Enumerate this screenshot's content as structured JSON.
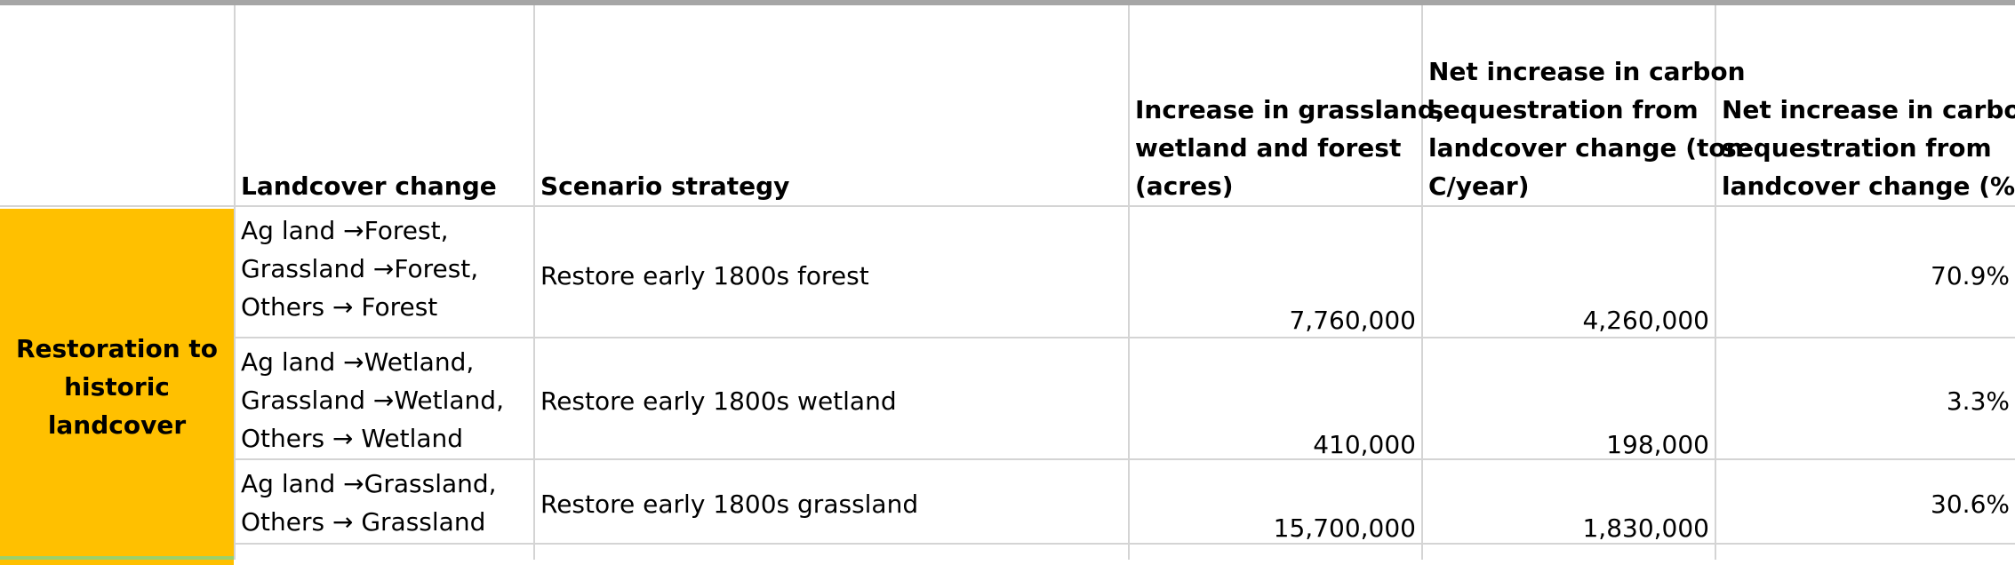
{
  "header": {
    "landcover_change": "Landcover change",
    "scenario_strategy": "Scenario strategy",
    "increase_acres": [
      "Increase in grassland,",
      "wetland and forest",
      "(acres)"
    ],
    "net_increase_tonc": [
      "Net increase in carbon",
      "sequestration from",
      "landcover change (ton-",
      "C/year)"
    ],
    "net_increase_pct": [
      "Net increase in carbon",
      "sequestration from",
      "landcover change (%)"
    ]
  },
  "group": {
    "label": [
      "Restoration to",
      "historic landcover"
    ],
    "color": "#ffc000"
  },
  "rows": [
    {
      "landcover": [
        "Ag land →Forest,",
        "Grassland →Forest,",
        "Others → Forest"
      ],
      "strategy": "Restore early 1800s forest",
      "acres": "7,760,000",
      "tonc": "4,260,000",
      "pct": "70.9%"
    },
    {
      "landcover": [
        "Ag land →Wetland,",
        "Grassland →Wetland,",
        "Others → Wetland"
      ],
      "strategy": "Restore early 1800s wetland",
      "acres": "410,000",
      "tonc": "198,000",
      "pct": "3.3%"
    },
    {
      "landcover": [
        "Ag land →Grassland,",
        "Others → Grassland"
      ],
      "strategy": "Restore early 1800s grassland",
      "acres": "15,700,000",
      "tonc": "1,830,000",
      "pct": "30.6%"
    }
  ]
}
